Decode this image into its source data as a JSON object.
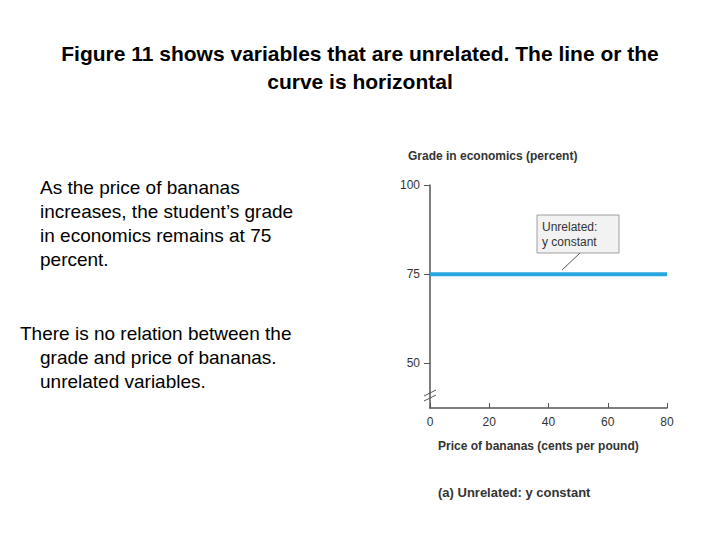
{
  "title": "Figure 11 shows variables that are unrelated. The line or the curve is horizontal",
  "paragraphs": [
    "As the price of bananas increases, the student’s grade in economics remains at 75 percent.",
    "There is no relation between the grade and price of bananas. unrelated variables."
  ],
  "chart_data": {
    "type": "line",
    "x": [
      0,
      20,
      40,
      60,
      80
    ],
    "values": [
      75,
      75,
      75,
      75,
      75
    ],
    "color": "#29a8e0",
    "xlim": [
      0,
      80
    ],
    "xticks": [
      0,
      20,
      40,
      60,
      80
    ],
    "ylim": [
      37.5,
      100
    ],
    "yticks": [
      50,
      75,
      100
    ],
    "xlabel": "Price of bananas (cents per pound)",
    "ylabel": "Grade in economics (percent)",
    "annotation": [
      "Unrelated:",
      "y constant"
    ],
    "caption": "(a) Unrelated: y constant",
    "grid": false,
    "marker": "none"
  }
}
